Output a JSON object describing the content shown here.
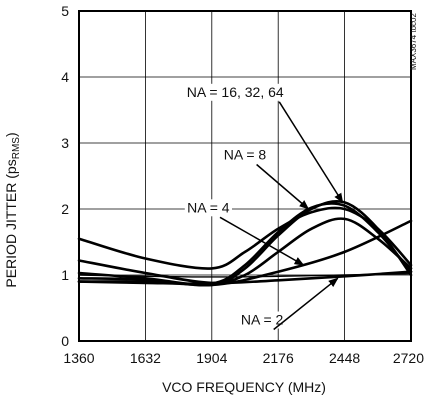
{
  "chart_data": {
    "type": "line",
    "xlabel": "VCO FREQUENCY (MHz)",
    "ylabel_main": "PERIOD JITTER (ps",
    "ylabel_sub": "RMS",
    "ylabel_close": ")",
    "side_note": "MAX3674 toc02",
    "xlim": [
      1360,
      2720
    ],
    "ylim": [
      0,
      5
    ],
    "xticks": [
      "1360",
      "1632",
      "1904",
      "2176",
      "2448",
      "2720"
    ],
    "yticks": [
      "0",
      "1",
      "2",
      "3",
      "4",
      "5"
    ],
    "grid": true,
    "series": [
      {
        "name": "NA = 2",
        "x": [
          1360,
          1632,
          1904,
          2176,
          2448,
          2720
        ],
        "y": [
          0.9,
          0.88,
          0.87,
          0.92,
          0.98,
          1.05
        ]
      },
      {
        "name": "NA = 4",
        "x": [
          1360,
          1632,
          1904,
          2176,
          2448,
          2720
        ],
        "y": [
          1.03,
          0.95,
          0.85,
          1.05,
          1.35,
          1.82
        ]
      },
      {
        "name": "NA = 8",
        "x": [
          1360,
          1632,
          1904,
          2040,
          2176,
          2312,
          2448,
          2584,
          2720
        ],
        "y": [
          1.22,
          1.03,
          0.88,
          1.0,
          1.35,
          1.7,
          1.85,
          1.55,
          1.1
        ]
      },
      {
        "name": "NA = 16, 32, 64",
        "x": [
          1360,
          1632,
          1904,
          2040,
          2176,
          2312,
          2448,
          2584,
          2720
        ],
        "y": [
          0.95,
          0.93,
          0.85,
          1.1,
          1.6,
          2.0,
          2.1,
          1.7,
          1.0
        ]
      },
      {
        "name": "",
        "x": [
          1360,
          1632,
          1904,
          2040,
          2176,
          2312,
          2448,
          2584,
          2720
        ],
        "y": [
          0.9,
          0.9,
          0.87,
          1.15,
          1.65,
          2.02,
          2.05,
          1.65,
          1.05
        ]
      },
      {
        "name": "",
        "x": [
          1360,
          1632,
          1904,
          2040,
          2176,
          2312,
          2448,
          2584,
          2720
        ],
        "y": [
          1.55,
          1.25,
          1.1,
          1.35,
          1.7,
          1.95,
          2.0,
          1.7,
          1.15
        ]
      },
      {
        "name": "",
        "x": [
          1360,
          1632,
          1904,
          2176,
          2448,
          2720
        ],
        "y": [
          1.0,
          0.98,
          0.97,
          0.98,
          1.0,
          1.02
        ]
      }
    ],
    "annotations": [
      {
        "text": "NA = 16, 32, 64",
        "x": 2000,
        "y": 3.7,
        "ax": 2440,
        "ay": 2.1
      },
      {
        "text": "NA = 8",
        "x": 2040,
        "y": 2.75,
        "ax": 2300,
        "ay": 2.0
      },
      {
        "text": "NA = 4",
        "x": 1890,
        "y": 1.95,
        "ax": 2280,
        "ay": 1.15
      },
      {
        "text": "NA = 2",
        "x": 2110,
        "y": 0.25,
        "ax": 2420,
        "ay": 0.95
      }
    ]
  }
}
